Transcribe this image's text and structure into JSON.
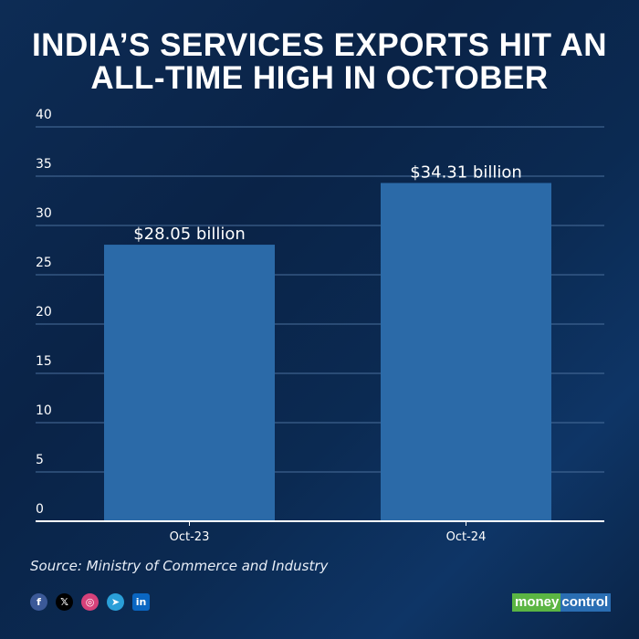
{
  "title_lines": [
    "INDIA’S SERVICES EXPORTS HIT AN",
    "ALL-TIME HIGH IN OCTOBER"
  ],
  "chart_data": {
    "type": "bar",
    "title": "INDIA’S SERVICES EXPORTS HIT AN ALL-TIME HIGH IN OCTOBER",
    "categories": [
      "Oct-23",
      "Oct-24"
    ],
    "values": [
      28.05,
      34.31
    ],
    "data_labels": [
      "$28.05 billion",
      "$34.31 billion"
    ],
    "unit": "USD billion",
    "xlabel": "",
    "ylabel": "",
    "ylim": [
      0,
      40
    ],
    "yticks": [
      0,
      5,
      10,
      15,
      20,
      25,
      30,
      35,
      40
    ],
    "grid": true,
    "bar_color": "#2b6aa8"
  },
  "source": "Source: Ministry of Commerce and Industry",
  "social_icons": [
    {
      "name": "facebook-icon",
      "glyph": "f",
      "color": "#3b5998"
    },
    {
      "name": "x-icon",
      "glyph": "𝕏",
      "color": "#000000"
    },
    {
      "name": "instagram-icon",
      "glyph": "◎",
      "color": "#d6417a"
    },
    {
      "name": "telegram-icon",
      "glyph": "➤",
      "color": "#2a9fd8"
    },
    {
      "name": "linkedin-icon",
      "glyph": "in",
      "color": "#0a66c2"
    }
  ],
  "logo": {
    "part1": "money",
    "part2": "control"
  }
}
